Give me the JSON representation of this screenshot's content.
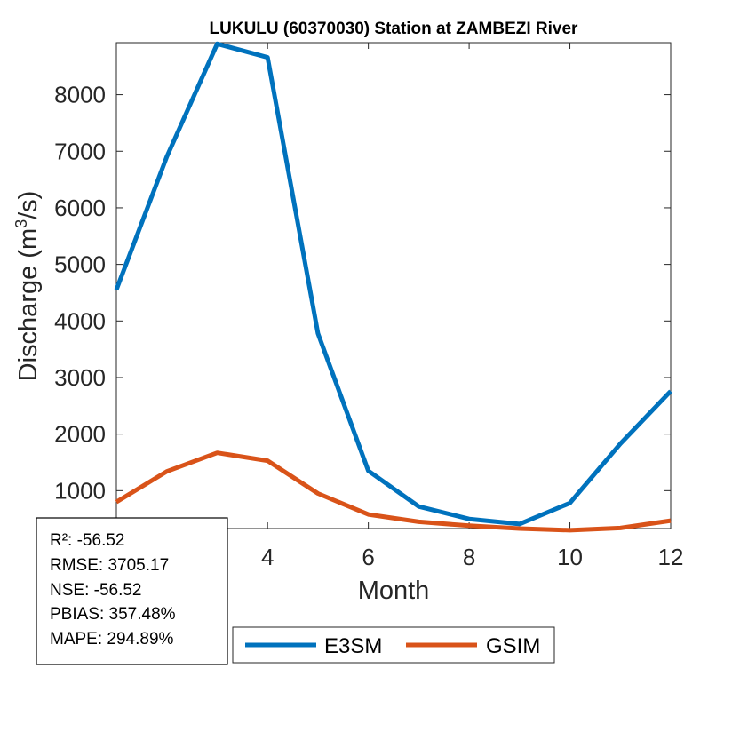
{
  "chart_data": {
    "type": "line",
    "title": "LUKULU (60370030)  Station at  ZAMBEZI  River",
    "xlabel": "Month",
    "ylabel_main": "Discharge (m",
    "ylabel_sup": "3",
    "ylabel_end": "/s)",
    "xlim": [
      1,
      12
    ],
    "ylim": [
      330,
      8920
    ],
    "xticks": [
      4,
      6,
      8,
      10,
      12
    ],
    "yticks": [
      1000,
      2000,
      3000,
      4000,
      5000,
      6000,
      7000,
      8000
    ],
    "x": [
      1,
      2,
      3,
      4,
      5,
      6,
      7,
      8,
      9,
      10,
      11,
      12
    ],
    "series": [
      {
        "name": "E3SM",
        "color": "#0072BD",
        "values": [
          4550,
          6900,
          8900,
          8660,
          3780,
          1350,
          720,
          500,
          410,
          780,
          1830,
          2760
        ]
      },
      {
        "name": "GSIM",
        "color": "#D95319",
        "values": [
          800,
          1340,
          1670,
          1530,
          950,
          580,
          450,
          380,
          330,
          300,
          340,
          470
        ]
      }
    ],
    "legend_position": "bottom-right, below axes",
    "stats": [
      "R²: -56.52",
      "RMSE: 3705.17",
      "NSE: -56.52",
      "PBIAS: 357.48%",
      "MAPE: 294.89%"
    ]
  }
}
